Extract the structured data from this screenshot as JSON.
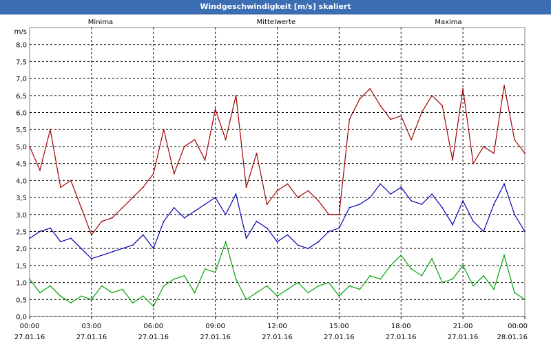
{
  "window": {
    "title": "Windgeschwindigkeit [m/s] skaliert"
  },
  "colors": {
    "minima": "#00a000",
    "mean": "#0000b0",
    "maxima": "#a00000",
    "grid": "#000000",
    "title_bar": "#3c6eb4"
  },
  "chart_data": {
    "type": "line",
    "title": "Windgeschwindigkeit [m/s] skaliert",
    "ylabel": "m/s",
    "xlabel": "",
    "ylim": [
      0,
      8.5
    ],
    "y_ticks": [
      "0,0",
      "0,5",
      "1,0",
      "1,5",
      "2,0",
      "2,5",
      "3,0",
      "3,5",
      "4,0",
      "4,5",
      "5,0",
      "5,5",
      "6,0",
      "6,5",
      "7,0",
      "7,5",
      "8,0"
    ],
    "x_tick_times": [
      "00:00",
      "03:00",
      "06:00",
      "09:00",
      "12:00",
      "15:00",
      "18:00",
      "21:00",
      "00:00"
    ],
    "x_tick_dates": [
      "27.01.16",
      "27.01.16",
      "27.01.16",
      "27.01.16",
      "27.01.16",
      "27.01.16",
      "27.01.16",
      "27.01.16",
      "28.01.16"
    ],
    "grid": true,
    "legend_position": "top",
    "x_hours": [
      0,
      0.5,
      1,
      1.5,
      2,
      2.5,
      3,
      3.5,
      4,
      4.5,
      5,
      5.5,
      6,
      6.5,
      7,
      7.5,
      8,
      8.5,
      9,
      9.5,
      10,
      10.5,
      11,
      11.5,
      12,
      12.5,
      13,
      13.5,
      14,
      14.5,
      15,
      15.5,
      16,
      16.5,
      17,
      17.5,
      18,
      18.5,
      19,
      19.5,
      20,
      20.5,
      21,
      21.5,
      22,
      22.5,
      23,
      23.5,
      24
    ],
    "series": [
      {
        "name": "Minima",
        "values": [
          1.1,
          0.7,
          0.9,
          0.6,
          0.4,
          0.6,
          0.5,
          0.9,
          0.7,
          0.8,
          0.4,
          0.6,
          0.3,
          0.9,
          1.1,
          1.2,
          0.7,
          1.4,
          1.3,
          2.2,
          1.1,
          0.5,
          0.7,
          0.9,
          0.6,
          0.8,
          1.0,
          0.7,
          0.9,
          1.0,
          0.6,
          0.9,
          0.8,
          1.2,
          1.1,
          1.5,
          1.8,
          1.4,
          1.2,
          1.7,
          1.0,
          1.1,
          1.5,
          0.9,
          1.2,
          0.8,
          1.8,
          0.7,
          0.5
        ]
      },
      {
        "name": "Mittelwerte",
        "values": [
          2.3,
          2.5,
          2.6,
          2.2,
          2.3,
          2.0,
          1.7,
          1.8,
          1.9,
          2.0,
          2.1,
          2.4,
          2.0,
          2.8,
          3.2,
          2.9,
          3.1,
          3.3,
          3.5,
          3.0,
          3.6,
          2.3,
          2.8,
          2.6,
          2.2,
          2.4,
          2.1,
          2.0,
          2.2,
          2.5,
          2.6,
          3.2,
          3.3,
          3.5,
          3.9,
          3.6,
          3.8,
          3.4,
          3.3,
          3.6,
          3.2,
          2.7,
          3.4,
          2.8,
          2.5,
          3.3,
          3.9,
          3.0,
          2.5
        ]
      },
      {
        "name": "Maxima",
        "values": [
          5.0,
          4.3,
          5.5,
          3.8,
          4.0,
          3.2,
          2.4,
          2.8,
          2.9,
          3.2,
          3.5,
          3.8,
          4.2,
          5.5,
          4.2,
          5.0,
          5.2,
          4.6,
          6.1,
          5.2,
          6.5,
          3.8,
          4.8,
          3.3,
          3.7,
          3.9,
          3.5,
          3.7,
          3.4,
          3.0,
          3.0,
          5.8,
          6.4,
          6.7,
          6.2,
          5.8,
          5.9,
          5.2,
          6.0,
          6.5,
          6.2,
          4.6,
          6.7,
          4.5,
          5.0,
          4.8,
          6.8,
          5.2,
          4.8
        ]
      }
    ]
  }
}
